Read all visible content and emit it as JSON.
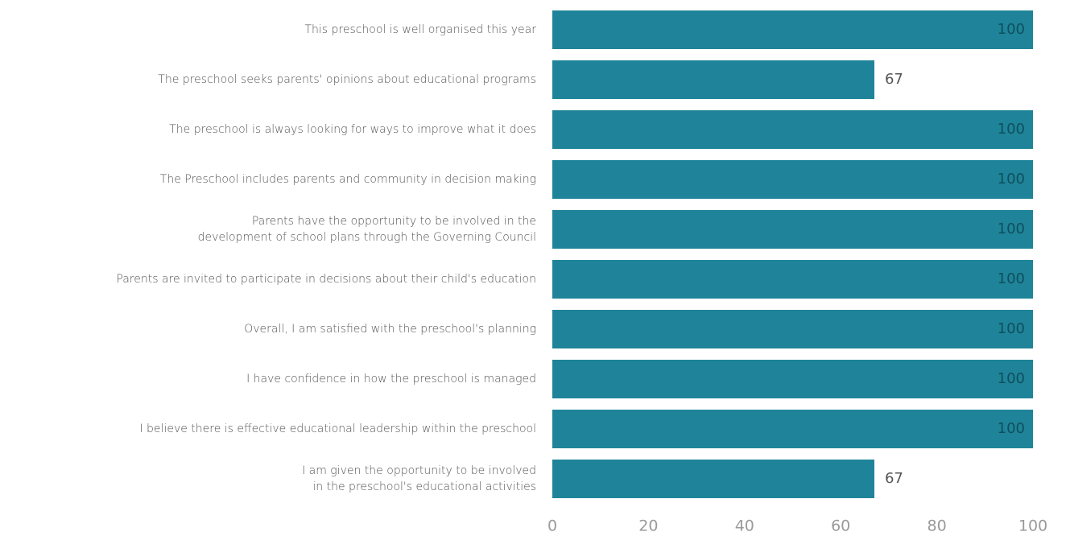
{
  "chart_data": {
    "type": "bar",
    "orientation": "horizontal",
    "title": "",
    "xlabel": "",
    "ylabel": "",
    "xlim": [
      0,
      100
    ],
    "x_ticks": [
      "0",
      "20",
      "40",
      "60",
      "80",
      "100"
    ],
    "grid": false,
    "legend": "none",
    "categories": [
      [
        "This preschool is well organised this year"
      ],
      [
        "The preschool seeks parents' opinions about educational programs"
      ],
      [
        "The preschool is always looking for ways to improve what it does"
      ],
      [
        "The Preschool includes parents and community in decision making"
      ],
      [
        "Parents have the opportunity to be involved in the",
        "development of school plans through the Governing Council"
      ],
      [
        "Parents are invited to participate in decisions about their child's education"
      ],
      [
        "Overall, I am satisfied with the preschool's planning"
      ],
      [
        "I have confidence in how the preschool is managed"
      ],
      [
        "I believe there is effective educational leadership within the preschool"
      ],
      [
        "I am given the opportunity to be involved",
        "in the preschool's educational activities"
      ]
    ],
    "values": [
      100,
      67,
      100,
      100,
      100,
      100,
      100,
      100,
      100,
      67
    ],
    "data_labels": [
      "100",
      "67",
      "100",
      "100",
      "100",
      "100",
      "100",
      "100",
      "100",
      "67"
    ],
    "colors": {
      "bar": "#1f8499",
      "label_inside": "#0e4f5d",
      "label_outside": "#555555",
      "category_text": "#555555",
      "tick_text": "#9a9a9a"
    }
  }
}
